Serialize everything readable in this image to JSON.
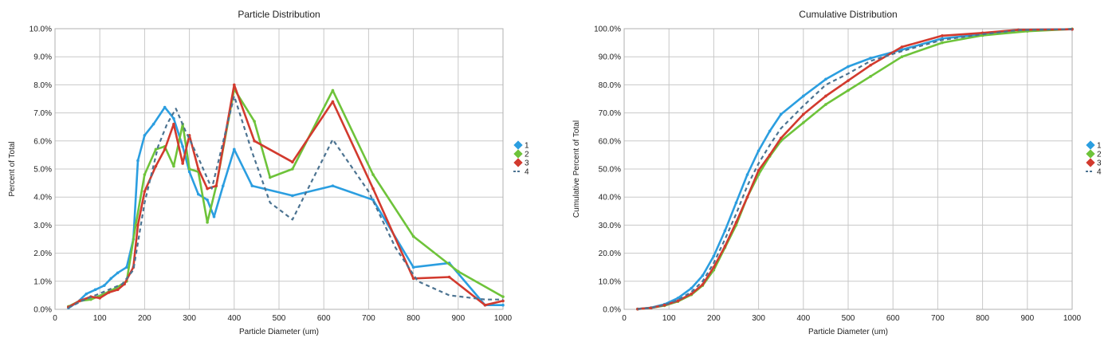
{
  "chart_data": [
    {
      "type": "line",
      "title": "Particle Distribution",
      "xlabel": "Particle Diameter (um)",
      "ylabel": "Percent of Total",
      "xlim": [
        0,
        1000
      ],
      "ylim": [
        0,
        10
      ],
      "x_ticks": [
        "0",
        "100",
        "200",
        "300",
        "400",
        "500",
        "600",
        "700",
        "800",
        "900",
        "1000"
      ],
      "y_ticks": [
        "0.0%",
        "1.0%",
        "2.0%",
        "3.0%",
        "4.0%",
        "5.0%",
        "6.0%",
        "7.0%",
        "8.0%",
        "9.0%",
        "10.0%"
      ],
      "grid": true,
      "legend": "right",
      "series": [
        {
          "name": "1",
          "color": "#2b9ee0",
          "style": "solid",
          "marker": true,
          "points": [
            [
              30,
              0.05
            ],
            [
              50,
              0.25
            ],
            [
              70,
              0.55
            ],
            [
              90,
              0.7
            ],
            [
              110,
              0.85
            ],
            [
              125,
              1.1
            ],
            [
              140,
              1.3
            ],
            [
              160,
              1.5
            ],
            [
              175,
              2.5
            ],
            [
              185,
              5.3
            ],
            [
              200,
              6.2
            ],
            [
              220,
              6.6
            ],
            [
              245,
              7.2
            ],
            [
              265,
              6.8
            ],
            [
              285,
              5.8
            ],
            [
              300,
              4.9
            ],
            [
              320,
              4.1
            ],
            [
              340,
              3.9
            ],
            [
              355,
              3.3
            ],
            [
              375,
              4.4
            ],
            [
              400,
              5.7
            ],
            [
              440,
              4.4
            ],
            [
              530,
              4.05
            ],
            [
              620,
              4.4
            ],
            [
              710,
              3.9
            ],
            [
              800,
              1.5
            ],
            [
              880,
              1.65
            ],
            [
              960,
              0.15
            ],
            [
              1000,
              0.15
            ]
          ]
        },
        {
          "name": "2",
          "color": "#6ec33a",
          "style": "solid",
          "marker": true,
          "points": [
            [
              30,
              0.1
            ],
            [
              55,
              0.3
            ],
            [
              80,
              0.35
            ],
            [
              110,
              0.55
            ],
            [
              135,
              0.75
            ],
            [
              160,
              1.0
            ],
            [
              180,
              3.0
            ],
            [
              200,
              4.8
            ],
            [
              225,
              5.7
            ],
            [
              245,
              5.8
            ],
            [
              265,
              5.1
            ],
            [
              285,
              6.6
            ],
            [
              300,
              5.0
            ],
            [
              320,
              4.9
            ],
            [
              340,
              3.1
            ],
            [
              360,
              4.4
            ],
            [
              400,
              7.85
            ],
            [
              445,
              6.7
            ],
            [
              480,
              4.7
            ],
            [
              530,
              5.0
            ],
            [
              620,
              7.8
            ],
            [
              710,
              4.8
            ],
            [
              800,
              2.6
            ],
            [
              900,
              1.35
            ],
            [
              1000,
              0.45
            ]
          ]
        },
        {
          "name": "3",
          "color": "#d23a2e",
          "style": "solid",
          "marker": true,
          "points": [
            [
              30,
              0.08
            ],
            [
              55,
              0.3
            ],
            [
              80,
              0.45
            ],
            [
              100,
              0.4
            ],
            [
              120,
              0.6
            ],
            [
              140,
              0.7
            ],
            [
              155,
              0.9
            ],
            [
              175,
              1.5
            ],
            [
              185,
              3.0
            ],
            [
              200,
              4.2
            ],
            [
              225,
              5.1
            ],
            [
              245,
              5.7
            ],
            [
              265,
              6.6
            ],
            [
              285,
              5.2
            ],
            [
              300,
              6.2
            ],
            [
              320,
              5.0
            ],
            [
              340,
              4.3
            ],
            [
              360,
              4.4
            ],
            [
              400,
              8.0
            ],
            [
              445,
              6.0
            ],
            [
              530,
              5.25
            ],
            [
              620,
              7.4
            ],
            [
              710,
              4.3
            ],
            [
              800,
              1.1
            ],
            [
              880,
              1.15
            ],
            [
              960,
              0.15
            ],
            [
              1000,
              0.3
            ]
          ]
        },
        {
          "name": "4",
          "color": "#4c7391",
          "style": "dashed",
          "marker": false,
          "points": [
            [
              30,
              0.05
            ],
            [
              60,
              0.3
            ],
            [
              90,
              0.5
            ],
            [
              120,
              0.7
            ],
            [
              150,
              0.9
            ],
            [
              175,
              1.4
            ],
            [
              200,
              3.8
            ],
            [
              230,
              5.8
            ],
            [
              250,
              6.6
            ],
            [
              270,
              7.15
            ],
            [
              290,
              6.4
            ],
            [
              320,
              5.4
            ],
            [
              350,
              4.3
            ],
            [
              400,
              7.6
            ],
            [
              440,
              5.6
            ],
            [
              480,
              3.8
            ],
            [
              530,
              3.2
            ],
            [
              620,
              6.05
            ],
            [
              700,
              4.2
            ],
            [
              760,
              2.2
            ],
            [
              810,
              1.0
            ],
            [
              880,
              0.5
            ],
            [
              960,
              0.35
            ],
            [
              1000,
              0.35
            ]
          ]
        }
      ]
    },
    {
      "type": "line",
      "title": "Cumulative Distribution",
      "xlabel": "Particle Diameter (um)",
      "ylabel": "Cumulative Percent of Total",
      "xlim": [
        0,
        1000
      ],
      "ylim": [
        0,
        100
      ],
      "x_ticks": [
        "0",
        "100",
        "200",
        "300",
        "400",
        "500",
        "600",
        "700",
        "800",
        "900",
        "1000"
      ],
      "y_ticks": [
        "0.0%",
        "10.0%",
        "20.0%",
        "30.0%",
        "40.0%",
        "50.0%",
        "60.0%",
        "70.0%",
        "80.0%",
        "90.0%",
        "100.0%"
      ],
      "grid": true,
      "legend": "right",
      "series": [
        {
          "name": "1",
          "color": "#2b9ee0",
          "style": "solid",
          "marker": true,
          "points": [
            [
              30,
              0.1
            ],
            [
              60,
              0.6
            ],
            [
              90,
              1.8
            ],
            [
              120,
              4.0
            ],
            [
              150,
              7.5
            ],
            [
              175,
              12.0
            ],
            [
              200,
              19.0
            ],
            [
              225,
              28.0
            ],
            [
              250,
              38.0
            ],
            [
              275,
              48.0
            ],
            [
              300,
              56.5
            ],
            [
              325,
              63.5
            ],
            [
              350,
              69.5
            ],
            [
              400,
              76.0
            ],
            [
              450,
              82.0
            ],
            [
              500,
              86.5
            ],
            [
              550,
              89.5
            ],
            [
              620,
              92.5
            ],
            [
              710,
              96.5
            ],
            [
              800,
              98.0
            ],
            [
              880,
              99.6
            ],
            [
              1000,
              99.8
            ]
          ]
        },
        {
          "name": "2",
          "color": "#6ec33a",
          "style": "solid",
          "marker": true,
          "points": [
            [
              30,
              0.1
            ],
            [
              60,
              0.5
            ],
            [
              90,
              1.3
            ],
            [
              120,
              2.8
            ],
            [
              150,
              5.2
            ],
            [
              175,
              8.5
            ],
            [
              200,
              14.0
            ],
            [
              225,
              22.0
            ],
            [
              250,
              30.0
            ],
            [
              275,
              40.0
            ],
            [
              300,
              48.0
            ],
            [
              325,
              54.5
            ],
            [
              350,
              60.0
            ],
            [
              400,
              66.5
            ],
            [
              450,
              73.0
            ],
            [
              500,
              78.0
            ],
            [
              550,
              83.0
            ],
            [
              620,
              90.0
            ],
            [
              710,
              95.0
            ],
            [
              800,
              97.6
            ],
            [
              900,
              99.1
            ],
            [
              1000,
              99.9
            ]
          ]
        },
        {
          "name": "3",
          "color": "#d23a2e",
          "style": "solid",
          "marker": true,
          "points": [
            [
              30,
              0.1
            ],
            [
              60,
              0.5
            ],
            [
              90,
              1.5
            ],
            [
              120,
              3.0
            ],
            [
              150,
              5.5
            ],
            [
              175,
              8.8
            ],
            [
              200,
              15.0
            ],
            [
              225,
              22.5
            ],
            [
              250,
              31.0
            ],
            [
              275,
              40.0
            ],
            [
              300,
              49.5
            ],
            [
              325,
              55.0
            ],
            [
              350,
              61.0
            ],
            [
              400,
              69.5
            ],
            [
              450,
              76.0
            ],
            [
              500,
              81.5
            ],
            [
              550,
              87.0
            ],
            [
              620,
              93.5
            ],
            [
              710,
              97.5
            ],
            [
              800,
              98.5
            ],
            [
              880,
              99.6
            ],
            [
              1000,
              99.8
            ]
          ]
        },
        {
          "name": "4",
          "color": "#4c7391",
          "style": "dashed",
          "marker": false,
          "points": [
            [
              30,
              0.1
            ],
            [
              60,
              0.5
            ],
            [
              90,
              1.6
            ],
            [
              120,
              3.3
            ],
            [
              150,
              6.2
            ],
            [
              175,
              10.0
            ],
            [
              200,
              16.5
            ],
            [
              225,
              25.0
            ],
            [
              250,
              34.0
            ],
            [
              275,
              44.0
            ],
            [
              300,
              52.0
            ],
            [
              325,
              58.5
            ],
            [
              350,
              64.5
            ],
            [
              400,
              72.5
            ],
            [
              450,
              80.0
            ],
            [
              500,
              84.0
            ],
            [
              550,
              88.5
            ],
            [
              620,
              92.0
            ],
            [
              710,
              96.0
            ],
            [
              800,
              98.0
            ],
            [
              880,
              99.5
            ],
            [
              1000,
              99.9
            ]
          ]
        }
      ]
    }
  ]
}
